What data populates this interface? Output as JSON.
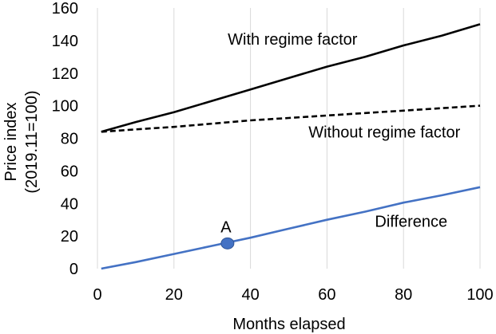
{
  "chart_data": {
    "type": "line",
    "title": "",
    "xlabel": "Months elapsed",
    "ylabel_line1": "Price index",
    "ylabel_line2": "(2019.11=100)",
    "xlim": [
      0,
      100
    ],
    "ylim": [
      0,
      160
    ],
    "x_ticks": [
      0,
      20,
      40,
      60,
      80,
      100
    ],
    "y_ticks": [
      0,
      20,
      40,
      60,
      80,
      100,
      120,
      140,
      160
    ],
    "grid": "vertical",
    "series": [
      {
        "name": "With regime factor",
        "style": "solid",
        "color": "#000000",
        "x": [
          1,
          10,
          20,
          30,
          40,
          50,
          60,
          70,
          80,
          90,
          100
        ],
        "y": [
          84,
          90,
          96,
          103,
          110,
          117,
          124,
          130,
          137,
          143,
          150
        ]
      },
      {
        "name": "Without regime factor",
        "style": "dashed",
        "color": "#000000",
        "x": [
          1,
          10,
          20,
          30,
          40,
          50,
          60,
          70,
          80,
          90,
          100
        ],
        "y": [
          84,
          85.5,
          87,
          89,
          91,
          92.5,
          94,
          95.5,
          97,
          98.5,
          100
        ]
      },
      {
        "name": "Difference",
        "style": "solid",
        "color": "#4472c4",
        "x": [
          1,
          10,
          20,
          30,
          40,
          50,
          60,
          70,
          80,
          90,
          100
        ],
        "y": [
          0,
          4,
          9,
          14,
          19,
          24.5,
          30,
          35,
          40.5,
          45,
          50
        ]
      }
    ],
    "labels": [
      {
        "text": "With regime factor",
        "x": 51,
        "y": 141
      },
      {
        "text": "Without regime factor",
        "x": 75,
        "y": 84
      },
      {
        "text": "Difference",
        "x": 82,
        "y": 29
      }
    ],
    "point": {
      "label": "A",
      "x": 34,
      "y": 15.5,
      "color": "#4472c4"
    }
  }
}
